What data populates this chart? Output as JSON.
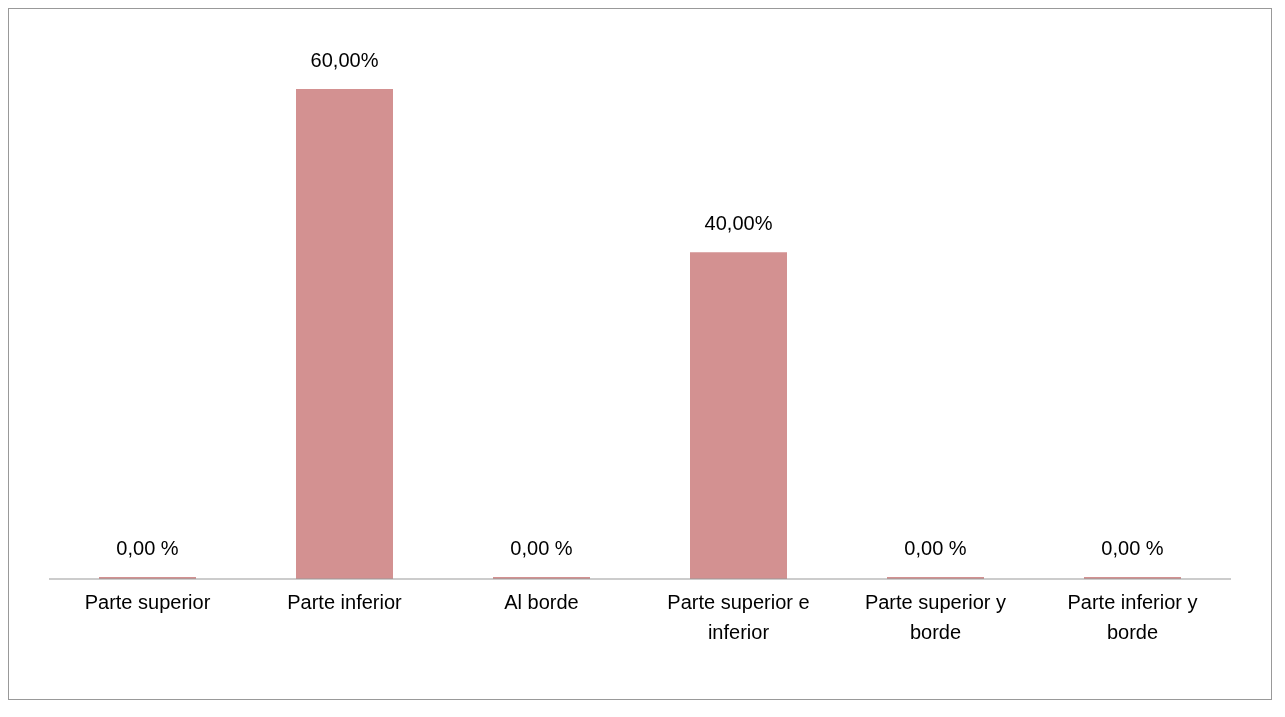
{
  "chart_data": {
    "type": "bar",
    "categories": [
      "Parte superior",
      "Parte inferior",
      "Al borde",
      "Parte superior e inferior",
      "Parte superior y borde",
      "Parte inferior y borde"
    ],
    "values": [
      0,
      60,
      0,
      40,
      0,
      0
    ],
    "color": "#d39191",
    "value_labels": [
      "0,00 %",
      "60,00%",
      "0,00 %",
      "40,00%",
      "0,00 %",
      "0,00 %"
    ],
    "grid": false,
    "legend": false
  }
}
